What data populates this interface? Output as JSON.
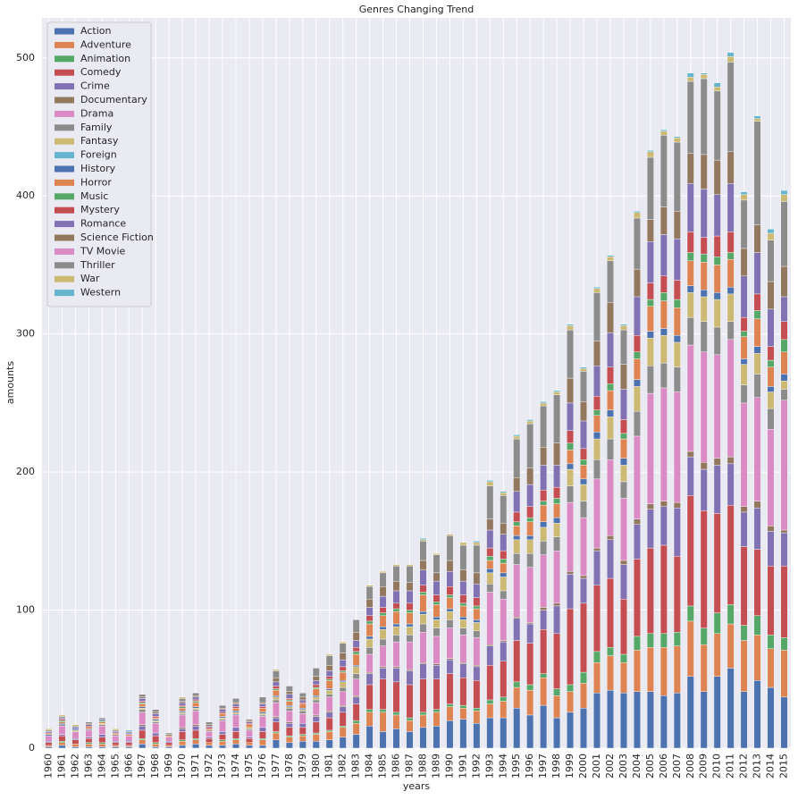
{
  "chart_data": {
    "type": "stacked_bar",
    "title": "Genres Changing Trend",
    "x_label": "years",
    "y_label": "amounts",
    "categories": [
      "1960",
      "1961",
      "1962",
      "1963",
      "1964",
      "1965",
      "1966",
      "1967",
      "1968",
      "1969",
      "1970",
      "1971",
      "1972",
      "1973",
      "1974",
      "1975",
      "1976",
      "1977",
      "1978",
      "1979",
      "1980",
      "1981",
      "1982",
      "1983",
      "1984",
      "1985",
      "1986",
      "1987",
      "1988",
      "1989",
      "1990",
      "1991",
      "1992",
      "1993",
      "1994",
      "1995",
      "1996",
      "1997",
      "1998",
      "1999",
      "2000",
      "2001",
      "2002",
      "2003",
      "2004",
      "2005",
      "2006",
      "2007",
      "2008",
      "2009",
      "2010",
      "2011",
      "2012",
      "2013",
      "2014",
      "2015"
    ],
    "genres": [
      "Action",
      "Adventure",
      "Animation",
      "Comedy",
      "Crime",
      "Documentary",
      "Drama",
      "Family",
      "Fantasy",
      "Foreign",
      "History",
      "Horror",
      "Music",
      "Mystery",
      "Romance",
      "Science Fiction",
      "TV Movie",
      "Thriller",
      "War",
      "Western"
    ],
    "colors": [
      "#4c72b0",
      "#dd8452",
      "#55a868",
      "#c44e52",
      "#8172b3",
      "#937860",
      "#da8bc3",
      "#8c8c8c",
      "#ccb974",
      "#64b5cd",
      "#4c72b0",
      "#dd8452",
      "#55a868",
      "#c44e52",
      "#8172b3",
      "#937860",
      "#da8bc3",
      "#8c8c8c",
      "#ccb974",
      "#64b5cd"
    ],
    "rows": [
      [
        1,
        1,
        0,
        2,
        1,
        0,
        4,
        0,
        0,
        0,
        1,
        1,
        0,
        0,
        1,
        0,
        0,
        1,
        1,
        0
      ],
      [
        2,
        2,
        1,
        4,
        1,
        0,
        6,
        1,
        0,
        0,
        1,
        1,
        1,
        1,
        1,
        0,
        0,
        1,
        1,
        0
      ],
      [
        1,
        2,
        0,
        3,
        1,
        0,
        5,
        0,
        1,
        0,
        1,
        0,
        0,
        0,
        1,
        0,
        0,
        1,
        1,
        0
      ],
      [
        1,
        2,
        1,
        3,
        1,
        0,
        5,
        1,
        0,
        0,
        0,
        1,
        0,
        1,
        1,
        1,
        0,
        1,
        0,
        0
      ],
      [
        1,
        2,
        1,
        4,
        2,
        0,
        6,
        1,
        1,
        0,
        0,
        1,
        1,
        0,
        1,
        0,
        0,
        1,
        0,
        0
      ],
      [
        1,
        1,
        0,
        2,
        1,
        0,
        4,
        1,
        0,
        0,
        0,
        1,
        0,
        0,
        1,
        0,
        0,
        1,
        1,
        0
      ],
      [
        1,
        1,
        0,
        2,
        1,
        0,
        4,
        0,
        0,
        0,
        0,
        1,
        0,
        0,
        1,
        0,
        0,
        1,
        0,
        1
      ],
      [
        3,
        3,
        1,
        6,
        3,
        1,
        9,
        2,
        1,
        0,
        1,
        2,
        1,
        1,
        2,
        1,
        0,
        2,
        0,
        0
      ],
      [
        1,
        2,
        1,
        5,
        2,
        0,
        7,
        1,
        1,
        0,
        1,
        1,
        0,
        1,
        2,
        1,
        0,
        2,
        0,
        0
      ],
      [
        1,
        1,
        0,
        2,
        1,
        0,
        3,
        0,
        0,
        0,
        0,
        1,
        0,
        0,
        0,
        1,
        0,
        1,
        0,
        0
      ],
      [
        2,
        3,
        1,
        6,
        2,
        1,
        9,
        1,
        1,
        0,
        1,
        2,
        1,
        1,
        2,
        1,
        0,
        2,
        1,
        0
      ],
      [
        3,
        3,
        1,
        6,
        3,
        1,
        10,
        1,
        1,
        0,
        1,
        3,
        1,
        1,
        2,
        1,
        0,
        2,
        0,
        0
      ],
      [
        2,
        2,
        0,
        3,
        1,
        0,
        4,
        1,
        0,
        0,
        0,
        1,
        0,
        1,
        1,
        1,
        0,
        2,
        0,
        0
      ],
      [
        2,
        3,
        1,
        4,
        2,
        0,
        8,
        1,
        1,
        0,
        1,
        2,
        0,
        1,
        2,
        1,
        0,
        2,
        0,
        0
      ],
      [
        3,
        3,
        1,
        5,
        3,
        0,
        9,
        1,
        1,
        0,
        1,
        2,
        0,
        1,
        2,
        1,
        0,
        3,
        0,
        0
      ],
      [
        2,
        2,
        0,
        3,
        1,
        0,
        5,
        1,
        1,
        0,
        0,
        2,
        0,
        1,
        1,
        1,
        0,
        1,
        0,
        0
      ],
      [
        2,
        4,
        1,
        5,
        3,
        0,
        8,
        1,
        1,
        0,
        1,
        3,
        0,
        1,
        2,
        1,
        0,
        4,
        0,
        0
      ],
      [
        6,
        5,
        1,
        7,
        3,
        1,
        10,
        2,
        2,
        0,
        1,
        4,
        1,
        2,
        3,
        3,
        0,
        5,
        1,
        0
      ],
      [
        4,
        4,
        1,
        6,
        3,
        1,
        8,
        2,
        1,
        0,
        1,
        3,
        1,
        1,
        3,
        2,
        0,
        4,
        0,
        0
      ],
      [
        5,
        4,
        1,
        5,
        3,
        0,
        7,
        2,
        1,
        0,
        1,
        3,
        0,
        1,
        2,
        2,
        0,
        3,
        0,
        0
      ],
      [
        5,
        5,
        1,
        8,
        4,
        1,
        9,
        2,
        2,
        0,
        1,
        5,
        1,
        2,
        3,
        3,
        0,
        6,
        0,
        0
      ],
      [
        6,
        6,
        1,
        9,
        4,
        1,
        10,
        2,
        3,
        0,
        1,
        6,
        1,
        2,
        4,
        4,
        0,
        7,
        1,
        0
      ],
      [
        8,
        7,
        1,
        10,
        4,
        1,
        10,
        3,
        4,
        0,
        1,
        6,
        1,
        3,
        5,
        5,
        0,
        7,
        1,
        0
      ],
      [
        10,
        8,
        2,
        12,
        5,
        1,
        12,
        4,
        5,
        0,
        1,
        8,
        2,
        3,
        5,
        6,
        0,
        9,
        0,
        0
      ],
      [
        16,
        10,
        2,
        18,
        8,
        1,
        13,
        5,
        6,
        0,
        2,
        9,
        2,
        4,
        6,
        6,
        0,
        9,
        1,
        0
      ],
      [
        12,
        14,
        2,
        22,
        8,
        1,
        15,
        5,
        7,
        0,
        2,
        8,
        2,
        4,
        8,
        7,
        0,
        10,
        1,
        0
      ],
      [
        14,
        10,
        2,
        22,
        10,
        1,
        18,
        5,
        6,
        0,
        2,
        9,
        2,
        4,
        9,
        7,
        0,
        11,
        1,
        0
      ],
      [
        12,
        8,
        2,
        24,
        10,
        1,
        20,
        5,
        6,
        0,
        2,
        8,
        2,
        5,
        9,
        6,
        0,
        12,
        1,
        0
      ],
      [
        15,
        9,
        2,
        24,
        11,
        1,
        22,
        6,
        7,
        0,
        2,
        12,
        2,
        5,
        11,
        7,
        0,
        14,
        1,
        1
      ],
      [
        16,
        10,
        2,
        22,
        10,
        1,
        20,
        6,
        6,
        0,
        2,
        9,
        2,
        5,
        10,
        6,
        0,
        13,
        1,
        0
      ],
      [
        20,
        10,
        2,
        22,
        10,
        1,
        22,
        6,
        6,
        0,
        2,
        8,
        2,
        6,
        11,
        8,
        0,
        18,
        1,
        0
      ],
      [
        21,
        8,
        2,
        20,
        10,
        1,
        20,
        5,
        6,
        0,
        2,
        8,
        2,
        6,
        10,
        8,
        0,
        18,
        2,
        0
      ],
      [
        18,
        9,
        2,
        20,
        10,
        1,
        20,
        5,
        6,
        0,
        2,
        8,
        2,
        6,
        10,
        8,
        0,
        20,
        2,
        1
      ],
      [
        22,
        10,
        3,
        25,
        14,
        1,
        38,
        6,
        8,
        0,
        3,
        6,
        3,
        6,
        13,
        8,
        0,
        24,
        3,
        1
      ],
      [
        22,
        12,
        3,
        26,
        14,
        1,
        30,
        6,
        10,
        0,
        3,
        7,
        3,
        6,
        12,
        8,
        0,
        20,
        2,
        1
      ],
      [
        29,
        15,
        4,
        30,
        16,
        1,
        38,
        8,
        10,
        0,
        3,
        7,
        3,
        7,
        15,
        10,
        0,
        28,
        2,
        1
      ],
      [
        24,
        18,
        4,
        30,
        14,
        1,
        40,
        10,
        10,
        0,
        3,
        10,
        3,
        8,
        16,
        12,
        0,
        32,
        2,
        1
      ],
      [
        31,
        20,
        3,
        32,
        14,
        2,
        38,
        10,
        10,
        0,
        4,
        12,
        3,
        8,
        18,
        13,
        0,
        30,
        2,
        1
      ],
      [
        22,
        16,
        5,
        40,
        20,
        2,
        38,
        10,
        10,
        0,
        4,
        10,
        4,
        8,
        16,
        16,
        0,
        35,
        2,
        1
      ],
      [
        26,
        15,
        5,
        55,
        25,
        2,
        50,
        12,
        12,
        0,
        4,
        10,
        5,
        9,
        20,
        18,
        0,
        35,
        3,
        1
      ],
      [
        29,
        18,
        8,
        50,
        18,
        2,
        42,
        12,
        12,
        0,
        4,
        10,
        4,
        8,
        20,
        14,
        0,
        22,
        2,
        1
      ],
      [
        40,
        22,
        8,
        48,
        25,
        2,
        50,
        14,
        15,
        0,
        5,
        12,
        4,
        10,
        22,
        18,
        0,
        35,
        3,
        1
      ],
      [
        42,
        25,
        6,
        50,
        28,
        3,
        55,
        15,
        16,
        0,
        5,
        14,
        5,
        12,
        25,
        22,
        0,
        30,
        3,
        1
      ],
      [
        40,
        22,
        6,
        40,
        25,
        3,
        45,
        12,
        12,
        0,
        5,
        14,
        4,
        10,
        22,
        18,
        0,
        25,
        3,
        1
      ],
      [
        41,
        30,
        10,
        56,
        25,
        4,
        60,
        18,
        18,
        0,
        5,
        15,
        5,
        12,
        28,
        20,
        0,
        37,
        4,
        1
      ],
      [
        41,
        32,
        10,
        62,
        28,
        4,
        80,
        20,
        20,
        0,
        5,
        18,
        5,
        12,
        30,
        16,
        0,
        45,
        4,
        1
      ],
      [
        38,
        35,
        10,
        64,
        28,
        4,
        82,
        18,
        20,
        0,
        5,
        20,
        6,
        12,
        30,
        20,
        0,
        52,
        3,
        1
      ],
      [
        40,
        34,
        10,
        55,
        35,
        4,
        80,
        18,
        18,
        0,
        5,
        20,
        6,
        14,
        30,
        20,
        0,
        50,
        3,
        1
      ],
      [
        52,
        40,
        11,
        80,
        28,
        4,
        77,
        20,
        18,
        0,
        5,
        18,
        6,
        15,
        35,
        22,
        0,
        52,
        3,
        3
      ],
      [
        41,
        34,
        12,
        85,
        30,
        5,
        80,
        22,
        18,
        0,
        5,
        20,
        6,
        12,
        35,
        25,
        0,
        55,
        3,
        1
      ],
      [
        52,
        31,
        15,
        72,
        35,
        5,
        75,
        20,
        20,
        0,
        5,
        20,
        6,
        15,
        30,
        25,
        0,
        50,
        3,
        3
      ],
      [
        58,
        32,
        14,
        72,
        30,
        5,
        85,
        13,
        20,
        0,
        5,
        20,
        5,
        15,
        35,
        23,
        0,
        65,
        4,
        3
      ],
      [
        41,
        37,
        11,
        57,
        25,
        4,
        75,
        13,
        15,
        0,
        4,
        16,
        4,
        10,
        30,
        20,
        0,
        35,
        4,
        2
      ],
      [
        49,
        33,
        14,
        48,
        30,
        5,
        75,
        17,
        15,
        0,
        5,
        20,
        6,
        12,
        30,
        20,
        0,
        75,
        2,
        2
      ],
      [
        44,
        28,
        10,
        50,
        25,
        4,
        70,
        15,
        12,
        0,
        4,
        14,
        5,
        10,
        27,
        20,
        0,
        30,
        5,
        3
      ],
      [
        37,
        34,
        9,
        52,
        24,
        2,
        94,
        8,
        6,
        0,
        5,
        16,
        9,
        13,
        18,
        22,
        0,
        47,
        5,
        3
      ]
    ],
    "ylim": [
      0,
      529
    ],
    "yticks": [
      0,
      100,
      200,
      300,
      400,
      500
    ],
    "grid": true,
    "legend": "upper left"
  }
}
